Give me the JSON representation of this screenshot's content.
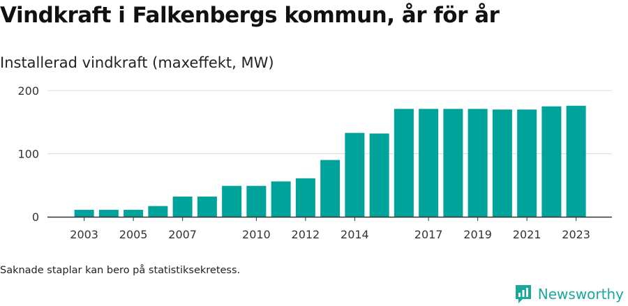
{
  "title": "Vindkraft i Falkenbergs kommun, år för år",
  "subtitle": "Installerad vindkraft (maxeffekt, MW)",
  "footnote": "Saknade staplar kan bero på statistiksekretess.",
  "brand": {
    "name": "Newsworthy",
    "color": "#1aa89b",
    "icon": "newsworthy-logo-icon"
  },
  "colors": {
    "bar": "#00a39a",
    "grid": "#dddddd",
    "axis": "#333333",
    "tick_text": "#333333"
  },
  "chart_data": {
    "type": "bar",
    "categories": [
      "2003",
      "2004",
      "2005",
      "2006",
      "2007",
      "2008",
      "2009",
      "2010",
      "2011",
      "2012",
      "2013",
      "2014",
      "2015",
      "2016",
      "2017",
      "2018",
      "2019",
      "2020",
      "2021",
      "2022",
      "2023"
    ],
    "values": [
      11,
      11,
      11,
      17,
      32,
      32,
      49,
      49,
      56,
      61,
      90,
      133,
      132,
      171,
      171,
      171,
      171,
      170,
      170,
      175,
      176
    ],
    "xtick_labels": [
      "2003",
      "2005",
      "2007",
      "2010",
      "2012",
      "2014",
      "2017",
      "2019",
      "2021",
      "2023"
    ],
    "ylim": [
      0,
      200
    ],
    "yticks": [
      0,
      100,
      200
    ],
    "xlabel": "",
    "ylabel": "",
    "grid": true
  }
}
